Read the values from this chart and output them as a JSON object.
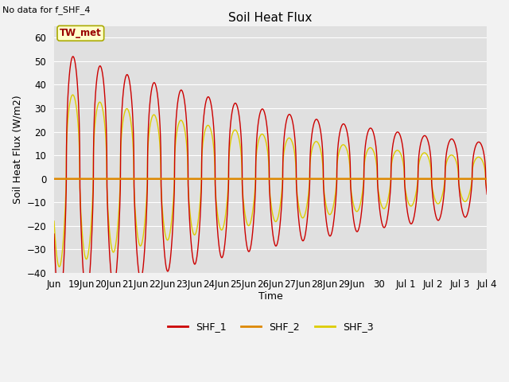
{
  "title": "Soil Heat Flux",
  "subtitle": "No data for f_SHF_4",
  "ylabel": "Soil Heat Flux (W/m2)",
  "xlabel": "Time",
  "ylim": [
    -40,
    65
  ],
  "shf1_color": "#cc0000",
  "shf2_color": "#dd8800",
  "shf3_color": "#ddcc00",
  "annotation_text": "TW_met",
  "annotation_bg": "#ffffcc",
  "annotation_border": "#aaaa00",
  "plot_bg_color": "#e0e0e0",
  "fig_bg_color": "#f2f2f2",
  "grid_color": "#ffffff",
  "tick_positions": [
    0,
    1,
    2,
    3,
    4,
    5,
    6,
    7,
    8,
    9,
    10,
    11,
    12,
    13,
    14,
    15,
    16
  ],
  "tick_labels": [
    "Jun",
    "19Jun",
    "20Jun",
    "21Jun",
    "22Jun",
    "23Jun",
    "24Jun",
    "25Jun",
    "26Jun",
    "27Jun",
    "28Jun",
    "29Jun",
    "30",
    "Jul 1",
    "Jul 2",
    "Jul 3",
    "Jul 4"
  ]
}
